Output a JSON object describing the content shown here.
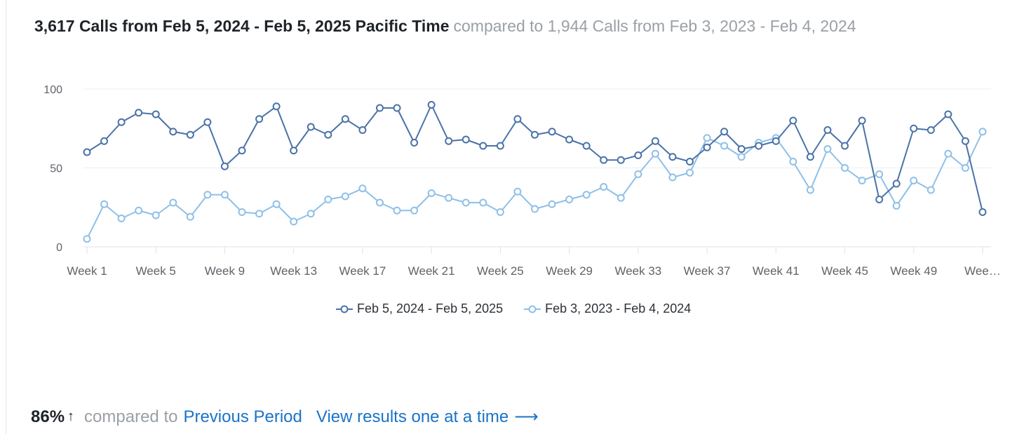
{
  "header": {
    "main": "3,617 Calls from Feb 5, 2024 - Feb 5, 2025 Pacific Time",
    "compare": "compared to 1,944 Calls from Feb 3, 2023 - Feb 4, 2024"
  },
  "footer": {
    "percent": "86%",
    "arrow": "↑",
    "compared_text": "compared to",
    "previous_link": "Previous Period",
    "view_link": "View results one at a time",
    "view_arrow": "⟶"
  },
  "colors": {
    "current": "#4a72a8",
    "previous": "#8ec0e8",
    "grid": "#eceef1",
    "axis_text": "#5f6368"
  },
  "chart_data": {
    "type": "line",
    "ylim": [
      0,
      100
    ],
    "yticks": [
      0,
      50,
      100
    ],
    "x": [
      1,
      2,
      3,
      4,
      5,
      6,
      7,
      8,
      9,
      10,
      11,
      12,
      13,
      14,
      15,
      16,
      17,
      18,
      19,
      20,
      21,
      22,
      23,
      24,
      25,
      26,
      27,
      28,
      29,
      30,
      31,
      32,
      33,
      34,
      35,
      36,
      37,
      38,
      39,
      40,
      41,
      42,
      43,
      44,
      45,
      46,
      47,
      48,
      49,
      50,
      51,
      52,
      53
    ],
    "xtick_labels": [
      "Week 1",
      "Week 5",
      "Week 9",
      "Week 13",
      "Week 17",
      "Week 21",
      "Week 25",
      "Week 29",
      "Week 33",
      "Week 37",
      "Week 41",
      "Week 45",
      "Week 49",
      "Wee…"
    ],
    "xtick_positions": [
      1,
      5,
      9,
      13,
      17,
      21,
      25,
      29,
      33,
      37,
      41,
      45,
      49,
      53
    ],
    "legend_position": "bottom",
    "series": [
      {
        "name": "Feb 5, 2024 - Feb 5, 2025",
        "values": [
          60,
          67,
          79,
          85,
          84,
          73,
          71,
          79,
          51,
          61,
          81,
          89,
          61,
          76,
          71,
          81,
          74,
          88,
          88,
          66,
          90,
          67,
          68,
          64,
          64,
          81,
          71,
          73,
          68,
          64,
          55,
          55,
          58,
          67,
          57,
          54,
          63,
          73,
          62,
          64,
          67,
          80,
          57,
          74,
          64,
          80,
          30,
          40,
          75,
          74,
          84,
          67,
          22
        ]
      },
      {
        "name": "Feb 3, 2023 - Feb 4, 2024",
        "values": [
          5,
          27,
          18,
          23,
          20,
          28,
          19,
          33,
          33,
          22,
          21,
          27,
          16,
          21,
          30,
          32,
          37,
          28,
          23,
          23,
          34,
          31,
          28,
          28,
          22,
          35,
          24,
          27,
          30,
          33,
          38,
          31,
          46,
          59,
          44,
          47,
          69,
          64,
          57,
          66,
          69,
          54,
          36,
          62,
          50,
          42,
          46,
          26,
          42,
          36,
          59,
          50,
          73
        ]
      }
    ]
  }
}
